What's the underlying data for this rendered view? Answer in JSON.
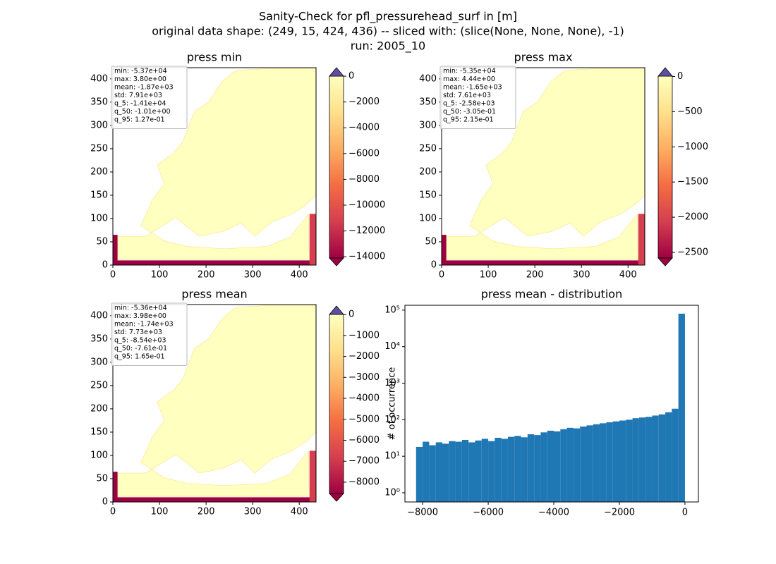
{
  "title": [
    "Sanity-Check for pfl_pressurehead_surf in [m]",
    "original data shape: (249, 15, 424, 436) -- sliced with: (slice(None, None, None), -1)",
    "run: 2005_10"
  ],
  "chart_data": [
    {
      "type": "heatmap",
      "title": "press min",
      "xlim": [
        0,
        436
      ],
      "ylim": [
        0,
        424
      ],
      "xticks": [
        0,
        100,
        200,
        300,
        400
      ],
      "yticks": [
        0,
        50,
        100,
        150,
        200,
        250,
        300,
        350,
        400
      ],
      "stats": [
        "min: -5.37e+04",
        "max: 3.80e+00",
        "mean: -1.87e+03",
        "std: 7.91e+03",
        "q_5: -1.41e+04",
        "q_50: -1.01e+00",
        "q_95: 1.27e-01"
      ],
      "colormap": [
        "#9e0142",
        "#d53e4f",
        "#f46d43",
        "#fdae61",
        "#fee08b",
        "#ffffbf"
      ],
      "over_color": "#5e4fa2",
      "clim": [
        -14100,
        3.8
      ],
      "colorbar_ticks": [
        0,
        {
          "value": -2000,
          "label": "−2000"
        },
        {
          "value": -4000,
          "label": "−4000"
        },
        {
          "value": -6000,
          "label": "−6000"
        },
        {
          "value": -8000,
          "label": "−8000"
        },
        {
          "value": -10000,
          "label": "−10000"
        },
        {
          "value": -12000,
          "label": "−12000"
        },
        {
          "value": -14000,
          "label": "−14000"
        }
      ]
    },
    {
      "type": "heatmap",
      "title": "press max",
      "xlim": [
        0,
        436
      ],
      "ylim": [
        0,
        424
      ],
      "xticks": [
        0,
        100,
        200,
        300,
        400
      ],
      "yticks": [
        0,
        50,
        100,
        150,
        200,
        250,
        300,
        350,
        400
      ],
      "stats": [
        "min: -5.35e+04",
        "max: 4.44e+00",
        "mean: -1.65e+03",
        "std: 7.61e+03",
        "q_5: -2.58e+03",
        "q_50: -3.05e-01",
        "q_95: 2.15e-01"
      ],
      "colormap": [
        "#9e0142",
        "#d53e4f",
        "#f46d43",
        "#fdae61",
        "#fee08b",
        "#ffffbf"
      ],
      "over_color": "#5e4fa2",
      "clim": [
        -2580,
        4.44
      ],
      "colorbar_ticks": [
        0,
        {
          "value": -500,
          "label": "−500"
        },
        {
          "value": -1000,
          "label": "−1000"
        },
        {
          "value": -1500,
          "label": "−1500"
        },
        {
          "value": -2000,
          "label": "−2000"
        },
        {
          "value": -2500,
          "label": "−2500"
        }
      ]
    },
    {
      "type": "heatmap",
      "title": "press mean",
      "xlim": [
        0,
        436
      ],
      "ylim": [
        0,
        424
      ],
      "xticks": [
        0,
        100,
        200,
        300,
        400
      ],
      "yticks": [
        0,
        50,
        100,
        150,
        200,
        250,
        300,
        350,
        400
      ],
      "stats": [
        "min: -5.36e+04",
        "max: 3.98e+00",
        "mean: -1.74e+03",
        "std: 7.73e+03",
        "q_5: -8.54e+03",
        "q_50: -7.61e-01",
        "q_95: 1.65e-01"
      ],
      "colormap": [
        "#9e0142",
        "#d53e4f",
        "#f46d43",
        "#fdae61",
        "#fee08b",
        "#ffffbf"
      ],
      "over_color": "#5e4fa2",
      "clim": [
        -8540,
        3.98
      ],
      "colorbar_ticks": [
        0,
        {
          "value": -1000,
          "label": "−1000"
        },
        {
          "value": -2000,
          "label": "−2000"
        },
        {
          "value": -3000,
          "label": "−3000"
        },
        {
          "value": -4000,
          "label": "−4000"
        },
        {
          "value": -5000,
          "label": "−5000"
        },
        {
          "value": -6000,
          "label": "−6000"
        },
        {
          "value": -7000,
          "label": "−7000"
        },
        {
          "value": -8000,
          "label": "−8000"
        }
      ]
    },
    {
      "type": "histogram",
      "title": "press mean - distribution",
      "ylabel": "# of occurrence",
      "color": "#1f77b4",
      "bins": [
        -8200,
        -8000,
        -7800,
        -7600,
        -7400,
        -7200,
        -7000,
        -6800,
        -6600,
        -6400,
        -6200,
        -6000,
        -5800,
        -5600,
        -5400,
        -5200,
        -5000,
        -4800,
        -4600,
        -4400,
        -4200,
        -4000,
        -3800,
        -3600,
        -3400,
        -3200,
        -3000,
        -2800,
        -2600,
        -2400,
        -2200,
        -2000,
        -1800,
        -1600,
        -1400,
        -1200,
        -1000,
        -800,
        -600,
        -400,
        -200,
        0
      ],
      "values": [
        18,
        25,
        20,
        24,
        22,
        26,
        25,
        28,
        24,
        27,
        30,
        26,
        32,
        30,
        34,
        36,
        33,
        40,
        38,
        45,
        50,
        48,
        55,
        60,
        58,
        65,
        70,
        75,
        80,
        85,
        90,
        95,
        100,
        110,
        115,
        120,
        130,
        140,
        160,
        200,
        80000
      ],
      "xlim": [
        -8540,
        410
      ],
      "ylim": [
        0.56,
        136000
      ],
      "log_y": true,
      "xticks": [
        {
          "value": -8000,
          "label": "−8000"
        },
        {
          "value": -6000,
          "label": "−6000"
        },
        {
          "value": -4000,
          "label": "−4000"
        },
        {
          "value": -2000,
          "label": "−2000"
        },
        0
      ],
      "yticks": [
        {
          "value": 1,
          "label": "10⁰"
        },
        {
          "value": 10,
          "label": "10¹"
        },
        {
          "value": 100,
          "label": "10²"
        },
        {
          "value": 1000,
          "label": "10³"
        },
        {
          "value": 10000,
          "label": "10⁴"
        },
        {
          "value": 100000,
          "label": "10⁵"
        }
      ]
    }
  ]
}
